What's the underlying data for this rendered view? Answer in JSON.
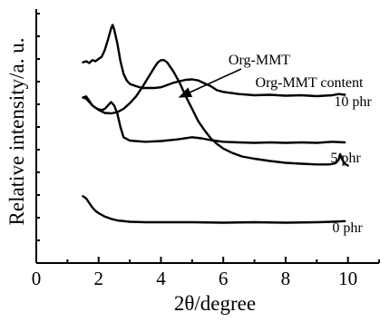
{
  "chart_data": {
    "type": "line",
    "xlabel": "2θ/degree",
    "ylabel": "Relative intensity/a. u.",
    "xlim": [
      0,
      11
    ],
    "x_ticks": [
      0,
      2,
      4,
      6,
      8,
      10
    ],
    "y_ticks_labeled": false,
    "grid": false,
    "legend": "none",
    "series": [
      {
        "label": "10 phr",
        "points": [
          [
            1.5,
            8.85
          ],
          [
            1.6,
            8.9
          ],
          [
            1.7,
            8.82
          ],
          [
            1.8,
            8.95
          ],
          [
            1.9,
            8.9
          ],
          [
            2.0,
            9.0
          ],
          [
            2.1,
            9.1
          ],
          [
            2.2,
            9.4
          ],
          [
            2.3,
            9.85
          ],
          [
            2.4,
            10.35
          ],
          [
            2.45,
            10.5
          ],
          [
            2.5,
            10.3
          ],
          [
            2.6,
            9.7
          ],
          [
            2.7,
            8.9
          ],
          [
            2.8,
            8.35
          ],
          [
            2.9,
            8.05
          ],
          [
            3.0,
            7.9
          ],
          [
            3.2,
            7.8
          ],
          [
            3.4,
            7.72
          ],
          [
            3.6,
            7.72
          ],
          [
            3.8,
            7.72
          ],
          [
            4.0,
            7.75
          ],
          [
            4.2,
            7.85
          ],
          [
            4.4,
            7.95
          ],
          [
            4.6,
            8.02
          ],
          [
            4.8,
            8.08
          ],
          [
            5.0,
            8.1
          ],
          [
            5.2,
            8.05
          ],
          [
            5.4,
            7.92
          ],
          [
            5.6,
            7.8
          ],
          [
            5.8,
            7.62
          ],
          [
            6.0,
            7.55
          ],
          [
            6.5,
            7.45
          ],
          [
            7.0,
            7.4
          ],
          [
            7.5,
            7.42
          ],
          [
            8.0,
            7.38
          ],
          [
            8.5,
            7.4
          ],
          [
            9.0,
            7.36
          ],
          [
            9.5,
            7.4
          ],
          [
            9.7,
            7.45
          ],
          [
            9.9,
            7.42
          ]
        ]
      },
      {
        "label": "Org-MMT",
        "points": [
          [
            1.5,
            7.3
          ],
          [
            1.6,
            7.35
          ],
          [
            1.7,
            7.15
          ],
          [
            1.8,
            6.95
          ],
          [
            1.9,
            6.85
          ],
          [
            2.0,
            6.75
          ],
          [
            2.2,
            6.62
          ],
          [
            2.4,
            6.6
          ],
          [
            2.6,
            6.65
          ],
          [
            2.8,
            6.8
          ],
          [
            3.0,
            7.05
          ],
          [
            3.2,
            7.35
          ],
          [
            3.4,
            7.75
          ],
          [
            3.6,
            8.2
          ],
          [
            3.8,
            8.65
          ],
          [
            3.9,
            8.85
          ],
          [
            4.0,
            8.95
          ],
          [
            4.1,
            8.95
          ],
          [
            4.2,
            8.85
          ],
          [
            4.4,
            8.45
          ],
          [
            4.6,
            7.95
          ],
          [
            4.8,
            7.35
          ],
          [
            5.0,
            6.8
          ],
          [
            5.2,
            6.25
          ],
          [
            5.4,
            5.85
          ],
          [
            5.6,
            5.5
          ],
          [
            5.8,
            5.25
          ],
          [
            6.0,
            5.05
          ],
          [
            6.3,
            4.85
          ],
          [
            6.6,
            4.7
          ],
          [
            7.0,
            4.6
          ],
          [
            7.5,
            4.5
          ],
          [
            8.0,
            4.42
          ],
          [
            8.5,
            4.38
          ],
          [
            9.0,
            4.35
          ],
          [
            9.4,
            4.35
          ],
          [
            9.6,
            4.4
          ],
          [
            9.7,
            4.55
          ],
          [
            9.75,
            4.8
          ],
          [
            9.8,
            4.6
          ],
          [
            9.9,
            4.38
          ],
          [
            10.0,
            4.3
          ]
        ]
      },
      {
        "label": "5 phr",
        "points": [
          [
            1.5,
            7.3
          ],
          [
            1.6,
            7.25
          ],
          [
            1.7,
            7.1
          ],
          [
            1.8,
            6.95
          ],
          [
            1.9,
            6.85
          ],
          [
            2.0,
            6.78
          ],
          [
            2.1,
            6.75
          ],
          [
            2.2,
            6.8
          ],
          [
            2.3,
            6.95
          ],
          [
            2.4,
            7.1
          ],
          [
            2.5,
            6.95
          ],
          [
            2.6,
            6.6
          ],
          [
            2.7,
            6.0
          ],
          [
            2.8,
            5.55
          ],
          [
            3.0,
            5.4
          ],
          [
            3.5,
            5.35
          ],
          [
            4.0,
            5.38
          ],
          [
            4.5,
            5.45
          ],
          [
            5.0,
            5.55
          ],
          [
            5.3,
            5.5
          ],
          [
            5.6,
            5.42
          ],
          [
            6.0,
            5.35
          ],
          [
            6.5,
            5.32
          ],
          [
            7.0,
            5.3
          ],
          [
            7.5,
            5.32
          ],
          [
            8.0,
            5.3
          ],
          [
            8.5,
            5.32
          ],
          [
            9.0,
            5.3
          ],
          [
            9.5,
            5.35
          ],
          [
            9.9,
            5.32
          ]
        ]
      },
      {
        "label": "0 phr",
        "points": [
          [
            1.5,
            2.95
          ],
          [
            1.6,
            2.85
          ],
          [
            1.7,
            2.65
          ],
          [
            1.8,
            2.45
          ],
          [
            1.9,
            2.3
          ],
          [
            2.0,
            2.2
          ],
          [
            2.2,
            2.05
          ],
          [
            2.4,
            1.95
          ],
          [
            2.6,
            1.88
          ],
          [
            3.0,
            1.82
          ],
          [
            3.5,
            1.8
          ],
          [
            4.0,
            1.8
          ],
          [
            5.0,
            1.8
          ],
          [
            6.0,
            1.78
          ],
          [
            7.0,
            1.8
          ],
          [
            8.0,
            1.78
          ],
          [
            9.0,
            1.8
          ],
          [
            9.5,
            1.82
          ],
          [
            9.9,
            1.85
          ]
        ]
      }
    ],
    "annotations": [
      {
        "text": "Org-MMT"
      },
      {
        "text": "Org-MMT content"
      },
      {
        "text": "10 phr"
      },
      {
        "text": "5 phr"
      },
      {
        "text": "0 phr"
      }
    ]
  }
}
